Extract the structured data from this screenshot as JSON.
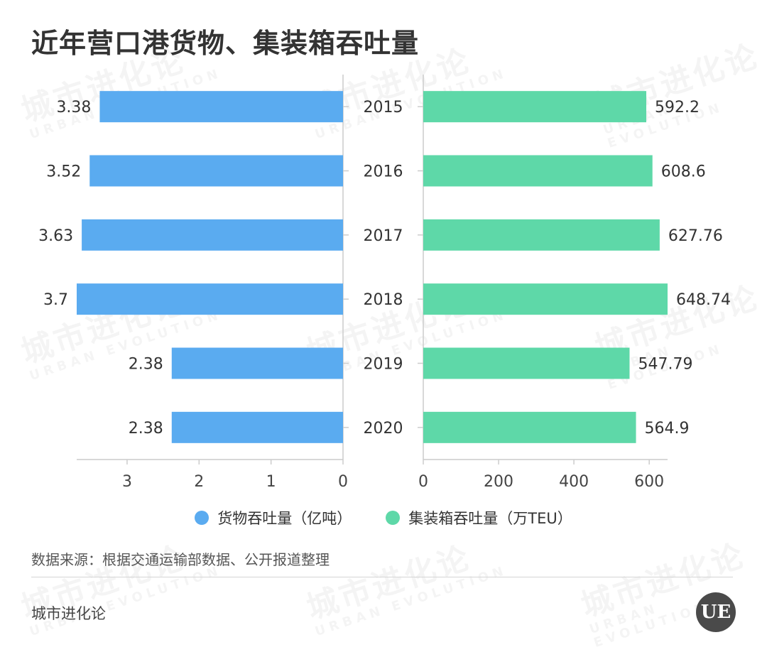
{
  "title": "近年营口港货物、集装箱吞吐量",
  "chart_data": {
    "type": "bar",
    "orientation": "horizontal-butterfly",
    "categories": [
      "2015",
      "2016",
      "2017",
      "2018",
      "2019",
      "2020"
    ],
    "series": [
      {
        "name": "货物吞吐量（亿吨）",
        "values": [
          3.38,
          3.52,
          3.63,
          3.7,
          2.38,
          2.38
        ],
        "labels": [
          "3.38",
          "3.52",
          "3.63",
          "3.7",
          "2.38",
          "2.38"
        ],
        "color": "#5aabf0",
        "axis_ticks": [
          "3",
          "2",
          "1",
          "0"
        ],
        "xlim": [
          0,
          3.7
        ]
      },
      {
        "name": "集装箱吞吐量（万TEU）",
        "values": [
          592.2,
          608.6,
          627.76,
          648.74,
          547.79,
          564.9
        ],
        "labels": [
          "592.2",
          "608.6",
          "627.76",
          "648.74",
          "547.79",
          "564.9"
        ],
        "color": "#5ed8a8",
        "axis_ticks": [
          "0",
          "200",
          "400",
          "600"
        ],
        "xlim": [
          0,
          648.74
        ]
      }
    ]
  },
  "legend": {
    "cargo_label": "货物吞吐量（亿吨）",
    "container_label": "集装箱吞吐量（万TEU）"
  },
  "source": "数据来源：根据交通运输部数据、公开报道整理",
  "brand": "城市进化论",
  "logo_text": "UE",
  "watermark": {
    "cn": "城市进化论",
    "en": "URBAN EVOLUTION"
  }
}
